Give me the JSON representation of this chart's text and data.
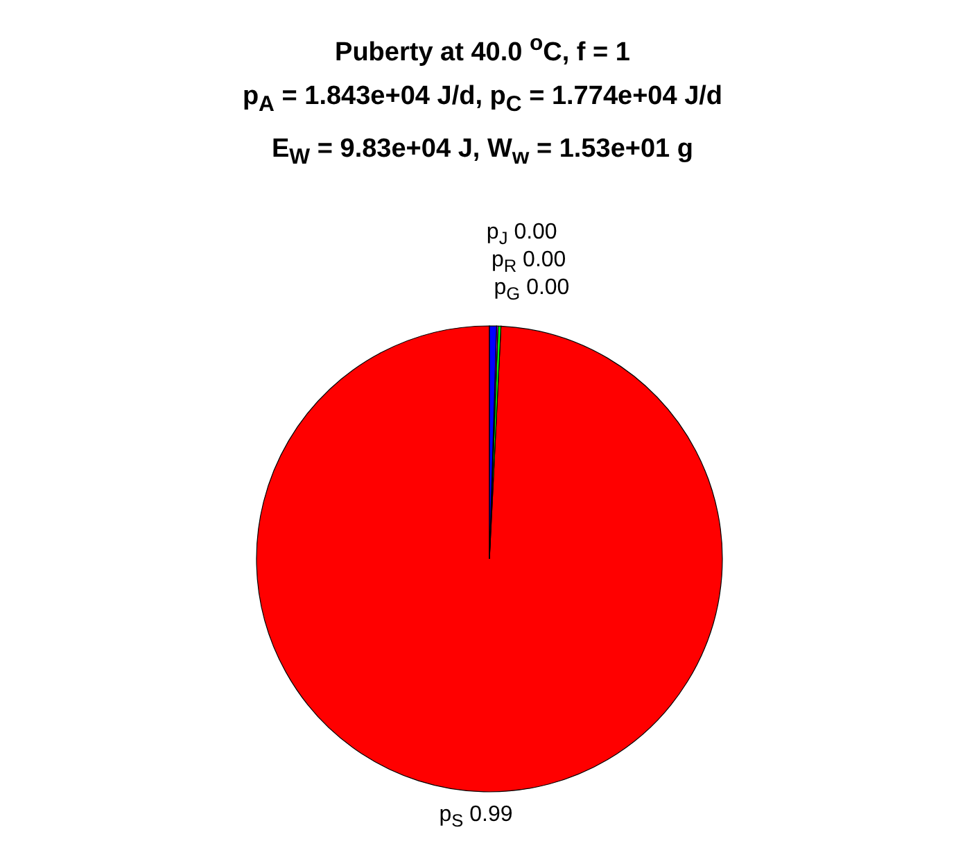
{
  "chart_data": {
    "type": "pie",
    "title": "Puberty at 40.0 $^{o}$C, f = 1\np$_{A}$ = 1.843e+04 J/d,  p$_{C}$ = 1.774e+04 J/d\nE$_{W}$ = 9.83e+04 J, W$_{w}$ = 1.53e+01 g",
    "categories": [
      "p$_{S}$",
      "p$_{G}$",
      "p$_{R}$",
      "p$_{J}$"
    ],
    "values": [
      0.9921,
      0.002,
      0.001,
      0.0049
    ],
    "value_labels": [
      "0.99",
      "0.00",
      "0.00",
      "0.00"
    ],
    "colors": [
      "#ff0000",
      "#00ff00",
      "#ff00ff",
      "#0000ff"
    ]
  }
}
